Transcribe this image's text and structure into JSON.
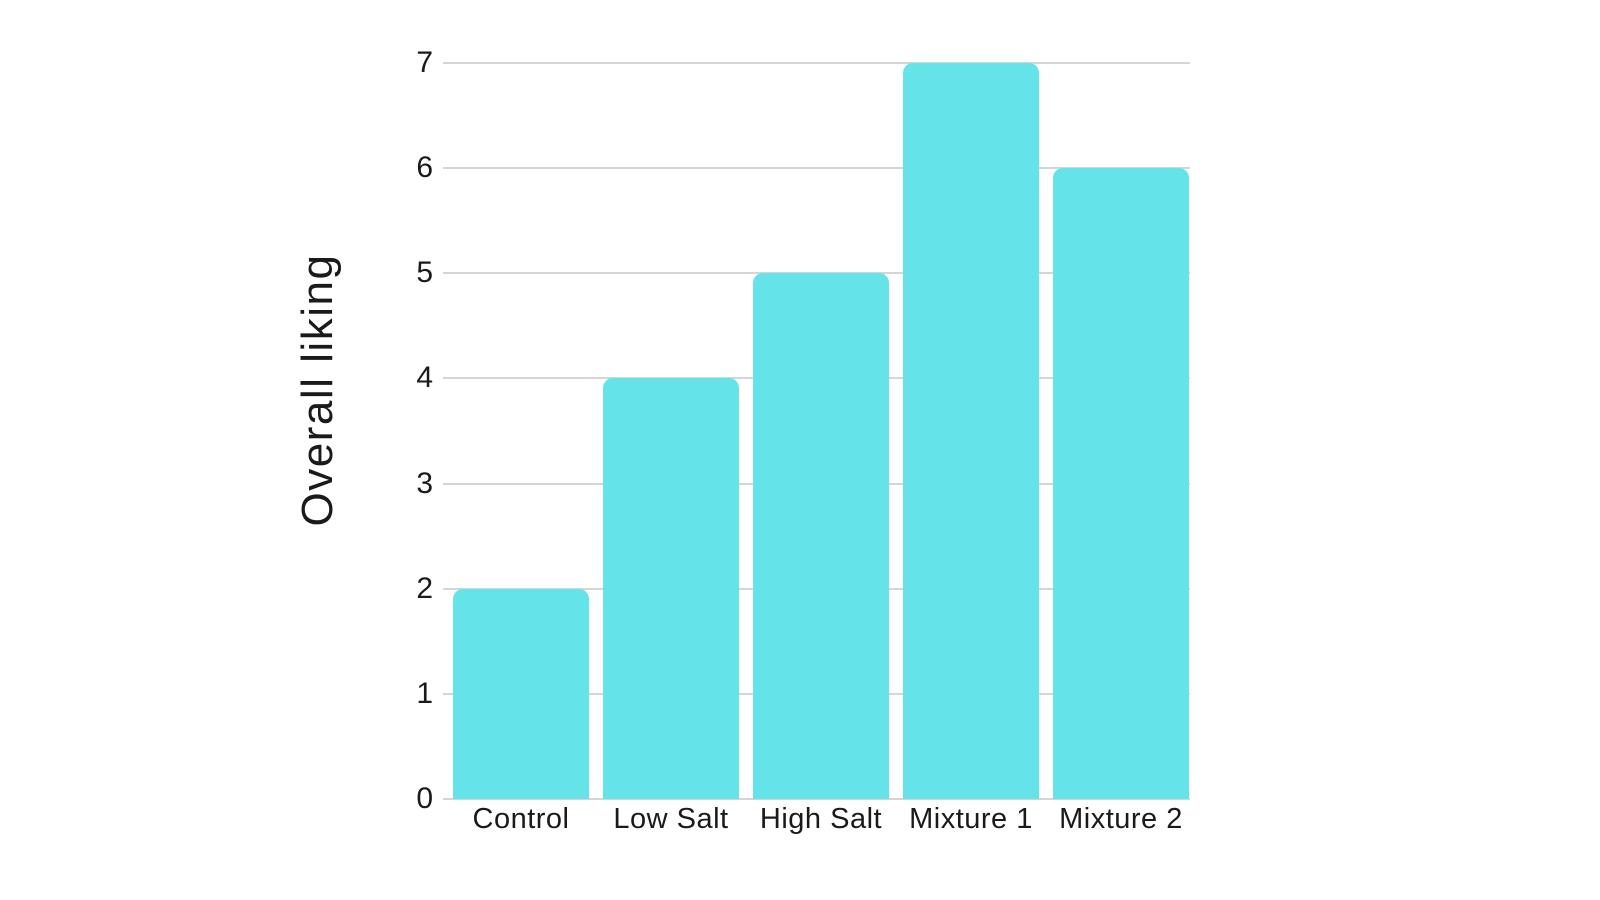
{
  "chart_data": {
    "type": "bar",
    "title": "",
    "xlabel": "",
    "ylabel": "Overall liking",
    "categories": [
      "Control",
      "Low Salt",
      "High Salt",
      "Mixture 1",
      "Mixture 2"
    ],
    "values": [
      2,
      4,
      5,
      7,
      6
    ],
    "yticks": [
      "0",
      "1",
      "2",
      "3",
      "4",
      "5",
      "6",
      "7"
    ],
    "ylim": [
      0,
      7
    ],
    "grid": "horizontal",
    "legend": "none",
    "colors": {
      "bar": "#64E4E8",
      "gridline": "#D5D5D5",
      "text": "#1A1A1A",
      "background": "#FFFFFF"
    }
  }
}
